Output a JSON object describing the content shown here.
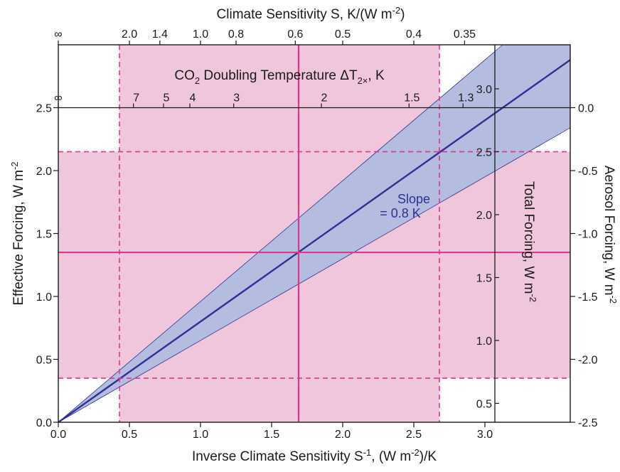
{
  "chart_data": {
    "type": "line",
    "bottom_axis": {
      "label": "Inverse Climate Sensitivity S⁻¹, (W m⁻²)/K",
      "label_parts": [
        "Inverse Climate Sensitivity S",
        "-1",
        ", (W m",
        "-2",
        ")/K"
      ],
      "range": [
        0,
        3.6
      ],
      "ticks": [
        0.0,
        0.5,
        1.0,
        1.5,
        2.0,
        2.5,
        3.0
      ],
      "tick_labels": [
        "0.0",
        "0.5",
        "1.0",
        "1.5",
        "2.0",
        "2.5",
        "3.0"
      ]
    },
    "left_axis": {
      "label": "Effective Forcing, W m⁻²",
      "label_parts": [
        "Effective Forcing, W m",
        "-2"
      ],
      "range": [
        0,
        3.0
      ],
      "ticks": [
        0.0,
        0.5,
        1.0,
        1.5,
        2.0,
        2.5
      ],
      "tick_labels": [
        "0.0",
        "0.5",
        "1.0",
        "1.5",
        "2.0",
        "2.5"
      ]
    },
    "top_axis": {
      "label": "Climate Sensitivity S, K/(W m⁻²)",
      "label_parts": [
        "Climate Sensitivity S, K/(W m",
        "-2",
        ")"
      ],
      "ticks": [
        "∞",
        "2.0",
        "1.4",
        "1.0",
        "0.8",
        "0.6",
        "0.5",
        "0.4",
        "0.35"
      ],
      "tick_values": [
        null,
        2.0,
        1.4,
        1.0,
        0.8,
        0.6,
        0.5,
        0.4,
        0.35
      ]
    },
    "inner_axis": {
      "label": "CO2 Doubling Temperature ΔT2×, K",
      "label_parts": [
        "CO",
        "2",
        " Doubling Temperature ΔT",
        "2×",
        ", K"
      ],
      "at_effective_forcing": 2.5,
      "ticks": [
        "∞",
        "7",
        "5",
        "4",
        "3",
        "2",
        "1.5",
        "1.3"
      ],
      "tick_values": [
        null,
        7,
        5,
        4,
        3,
        2,
        1.5,
        1.3
      ]
    },
    "total_forcing_axis": {
      "label": "Total Forcing, W m⁻²",
      "label_parts": [
        "Total Forcing, W m",
        "-2"
      ],
      "at_inverse_sensitivity": 3.07,
      "ticks": [
        0.5,
        1.0,
        1.5,
        2.0,
        2.5,
        3.0
      ],
      "tick_labels": [
        "0.5",
        "1.0",
        "1.5",
        "2.0",
        "2.5",
        "3.0"
      ],
      "offset_vs_effective_forcing": 0.35
    },
    "aerosol_forcing_axis": {
      "label": "Aerosol Forcing, W m⁻²",
      "label_parts": [
        "Aerosol Forcing, W m",
        "-2"
      ],
      "ticks": [
        0.0,
        -0.5,
        -1.0,
        -1.5,
        -2.0,
        -2.5
      ],
      "tick_labels": [
        "0.0",
        "-0.5",
        "-1.0",
        "-1.5",
        "-2.0",
        "-2.5"
      ],
      "offset_vs_effective_forcing": -2.5
    },
    "series": [
      {
        "name": "Slope = 0.8 K",
        "x": [
          0,
          3.6
        ],
        "y": [
          0,
          2.88
        ]
      }
    ],
    "uncertainty_band": {
      "slope_upper": 0.96,
      "slope_lower": 0.65
    },
    "ranges": {
      "inverse_sensitivity": {
        "low": 0.43,
        "central": 1.69,
        "high": 2.68
      },
      "effective_forcing": {
        "low": 0.35,
        "central": 1.35,
        "high": 2.15
      }
    },
    "annotation": {
      "line1": "Slope",
      "line2": "= 0.8 K"
    },
    "colors": {
      "line": "#2e3192",
      "band": "#b4bce0",
      "pink_fill": "#f0c6dd",
      "pink_line": "#e0348e"
    }
  }
}
